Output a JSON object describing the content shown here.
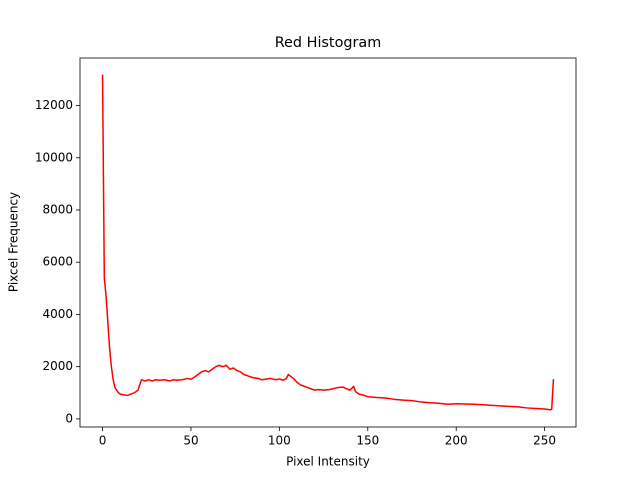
{
  "chart_data": {
    "type": "line",
    "title": "Red Histogram",
    "x_label": "Pixel Intensity",
    "y_label": "Pixcel Frequency",
    "x": [
      0,
      1,
      2,
      3,
      4,
      5,
      6,
      7,
      8,
      9,
      10,
      12,
      14,
      16,
      18,
      20,
      21,
      22,
      24,
      26,
      28,
      30,
      32,
      35,
      38,
      40,
      42,
      45,
      48,
      50,
      52,
      54,
      56,
      58,
      60,
      62,
      64,
      66,
      68,
      70,
      72,
      74,
      76,
      78,
      80,
      82,
      85,
      88,
      90,
      92,
      95,
      98,
      100,
      102,
      104,
      105,
      106,
      108,
      110,
      112,
      114,
      116,
      118,
      120,
      122,
      125,
      128,
      130,
      133,
      136,
      138,
      140,
      142,
      143,
      145,
      148,
      150,
      155,
      160,
      165,
      170,
      175,
      180,
      185,
      190,
      195,
      200,
      205,
      210,
      215,
      220,
      225,
      230,
      235,
      240,
      245,
      250,
      253,
      254,
      255
    ],
    "series": [
      {
        "name": "Red",
        "color": "#ff0000",
        "values": [
          13180,
          5400,
          4700,
          3700,
          2700,
          2000,
          1500,
          1200,
          1100,
          1000,
          950,
          920,
          900,
          950,
          1000,
          1100,
          1300,
          1500,
          1450,
          1500,
          1450,
          1500,
          1480,
          1500,
          1450,
          1500,
          1480,
          1500,
          1550,
          1520,
          1600,
          1700,
          1800,
          1850,
          1800,
          1900,
          2000,
          2050,
          2000,
          2050,
          1900,
          1950,
          1850,
          1800,
          1700,
          1650,
          1580,
          1550,
          1500,
          1520,
          1550,
          1500,
          1530,
          1480,
          1550,
          1700,
          1650,
          1550,
          1400,
          1300,
          1250,
          1200,
          1150,
          1100,
          1120,
          1100,
          1120,
          1150,
          1200,
          1220,
          1150,
          1100,
          1250,
          1050,
          950,
          900,
          850,
          820,
          800,
          750,
          720,
          700,
          650,
          620,
          600,
          560,
          580,
          570,
          560,
          540,
          520,
          500,
          480,
          460,
          420,
          400,
          380,
          350,
          360,
          1520
        ]
      }
    ],
    "xlim": [
      -12.75,
      267.75
    ],
    "ylim": [
      -310,
      13820
    ],
    "xticks": [
      0,
      50,
      100,
      150,
      200,
      250
    ],
    "yticks": [
      0,
      2000,
      4000,
      6000,
      8000,
      10000,
      12000
    ]
  }
}
